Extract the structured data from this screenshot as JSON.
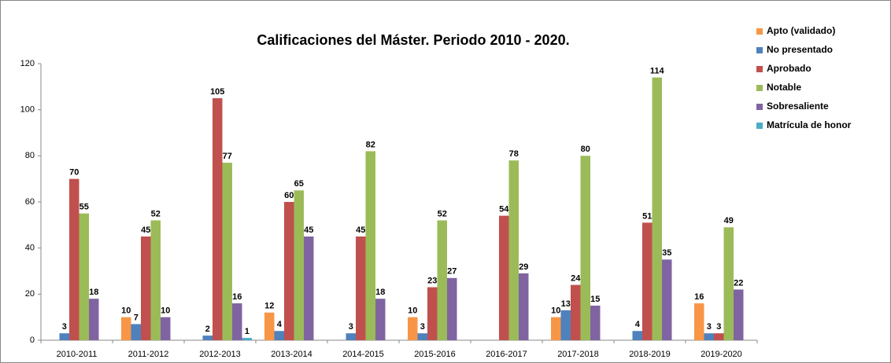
{
  "chart_data": {
    "type": "bar",
    "title": "Calificaciones del Máster. Periodo  2010 - 2020.",
    "categories": [
      "2010-2011",
      "2011-2012",
      "2012-2013",
      "2013-2014",
      "2014-2015",
      "2015-2016",
      "2016-2017",
      "2017-2018",
      "2018-2019",
      "2019-2020"
    ],
    "series": [
      {
        "name": "Apto (validado)",
        "color": "#f79646",
        "values": [
          null,
          10,
          null,
          12,
          null,
          10,
          null,
          10,
          null,
          16
        ]
      },
      {
        "name": "No presentado",
        "color": "#4f81bd",
        "values": [
          3,
          7,
          2,
          4,
          3,
          3,
          null,
          13,
          4,
          3
        ]
      },
      {
        "name": "Aprobado",
        "color": "#c0504d",
        "values": [
          70,
          45,
          105,
          60,
          45,
          23,
          54,
          24,
          51,
          3
        ]
      },
      {
        "name": "Notable",
        "color": "#9bbb59",
        "values": [
          55,
          52,
          77,
          65,
          82,
          52,
          78,
          80,
          114,
          49
        ]
      },
      {
        "name": "Sobresaliente",
        "color": "#8064a2",
        "values": [
          18,
          10,
          16,
          45,
          18,
          27,
          29,
          15,
          35,
          22
        ]
      },
      {
        "name": "Matrícula de honor",
        "color": "#4bacc6",
        "values": [
          null,
          null,
          1,
          null,
          null,
          null,
          null,
          null,
          null,
          null
        ]
      }
    ],
    "ylim": [
      0,
      120
    ],
    "yticks": [
      0,
      20,
      40,
      60,
      80,
      100,
      120
    ],
    "grid": false,
    "legend": "right"
  }
}
